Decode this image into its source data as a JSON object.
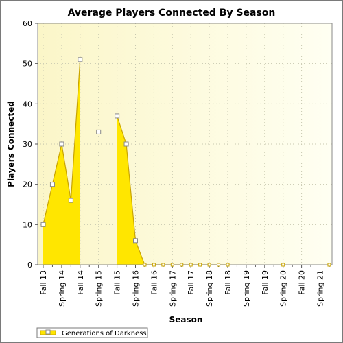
{
  "chart_data": {
    "type": "area",
    "title": "Average Players Connected By Season",
    "xlabel": "Season",
    "ylabel": "Players Connected",
    "ylim": [
      0,
      60
    ],
    "yticks": [
      0,
      10,
      20,
      30,
      40,
      50,
      60
    ],
    "grid": true,
    "legend_position": "bottom-left",
    "categories": [
      "Fall 13",
      "",
      "Spring 14",
      "",
      "Fall 14",
      "",
      "Spring 15",
      "",
      "Fall 15",
      "",
      "Spring 16",
      "",
      "Fall 16",
      "",
      "Spring 17",
      "",
      "Fall 17",
      "",
      "Spring 18",
      "",
      "Fall 18",
      "",
      "Spring 19",
      "",
      "Fall 19",
      "",
      "Spring 20",
      "",
      "Fall 20",
      "",
      "Spring 21",
      ""
    ],
    "series": [
      {
        "name": "Generations of Darkness",
        "color": "#ffe600",
        "line_color": "#c9a400",
        "values": [
          10,
          20,
          30,
          16,
          51,
          null,
          33,
          null,
          37,
          30,
          6,
          0,
          0,
          0,
          0,
          0,
          0,
          0,
          0,
          0,
          0,
          null,
          null,
          null,
          null,
          null,
          0,
          null,
          null,
          null,
          null,
          0
        ]
      }
    ]
  },
  "legend": {
    "label": "Generations of Darkness"
  }
}
